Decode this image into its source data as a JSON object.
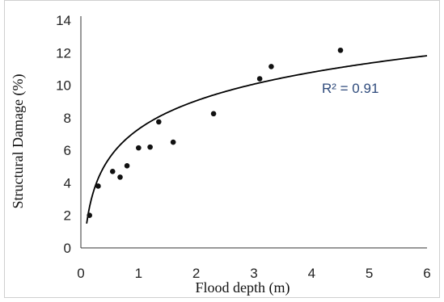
{
  "chart_data": {
    "type": "scatter",
    "title": "",
    "xlabel": "Flood depth (m)",
    "ylabel": "Structural Damage (%)",
    "xlim": [
      0,
      6
    ],
    "ylim": [
      0,
      14
    ],
    "x_ticks": [
      "0",
      "1",
      "2",
      "3",
      "4",
      "5",
      "6"
    ],
    "y_ticks": [
      "0",
      "2",
      "4",
      "6",
      "8",
      "10",
      "12",
      "14"
    ],
    "grid": false,
    "legend": "none",
    "series": [
      {
        "points": [
          {
            "x": 0.15,
            "y": 2.0
          },
          {
            "x": 0.3,
            "y": 3.8
          },
          {
            "x": 0.55,
            "y": 4.7
          },
          {
            "x": 0.68,
            "y": 4.35
          },
          {
            "x": 0.8,
            "y": 5.05
          },
          {
            "x": 1.0,
            "y": 6.15
          },
          {
            "x": 1.2,
            "y": 6.2
          },
          {
            "x": 1.35,
            "y": 7.75
          },
          {
            "x": 1.6,
            "y": 6.5
          },
          {
            "x": 2.3,
            "y": 8.25
          },
          {
            "x": 3.1,
            "y": 10.4
          },
          {
            "x": 3.3,
            "y": 11.15
          },
          {
            "x": 4.5,
            "y": 12.15
          }
        ],
        "color": "#111111"
      }
    ],
    "trendline": {
      "type": "logarithmic",
      "a": 2.52,
      "b": 7.3,
      "x_range": [
        0.1,
        6
      ],
      "color": "#000000",
      "label": "R² = 0.91"
    }
  }
}
